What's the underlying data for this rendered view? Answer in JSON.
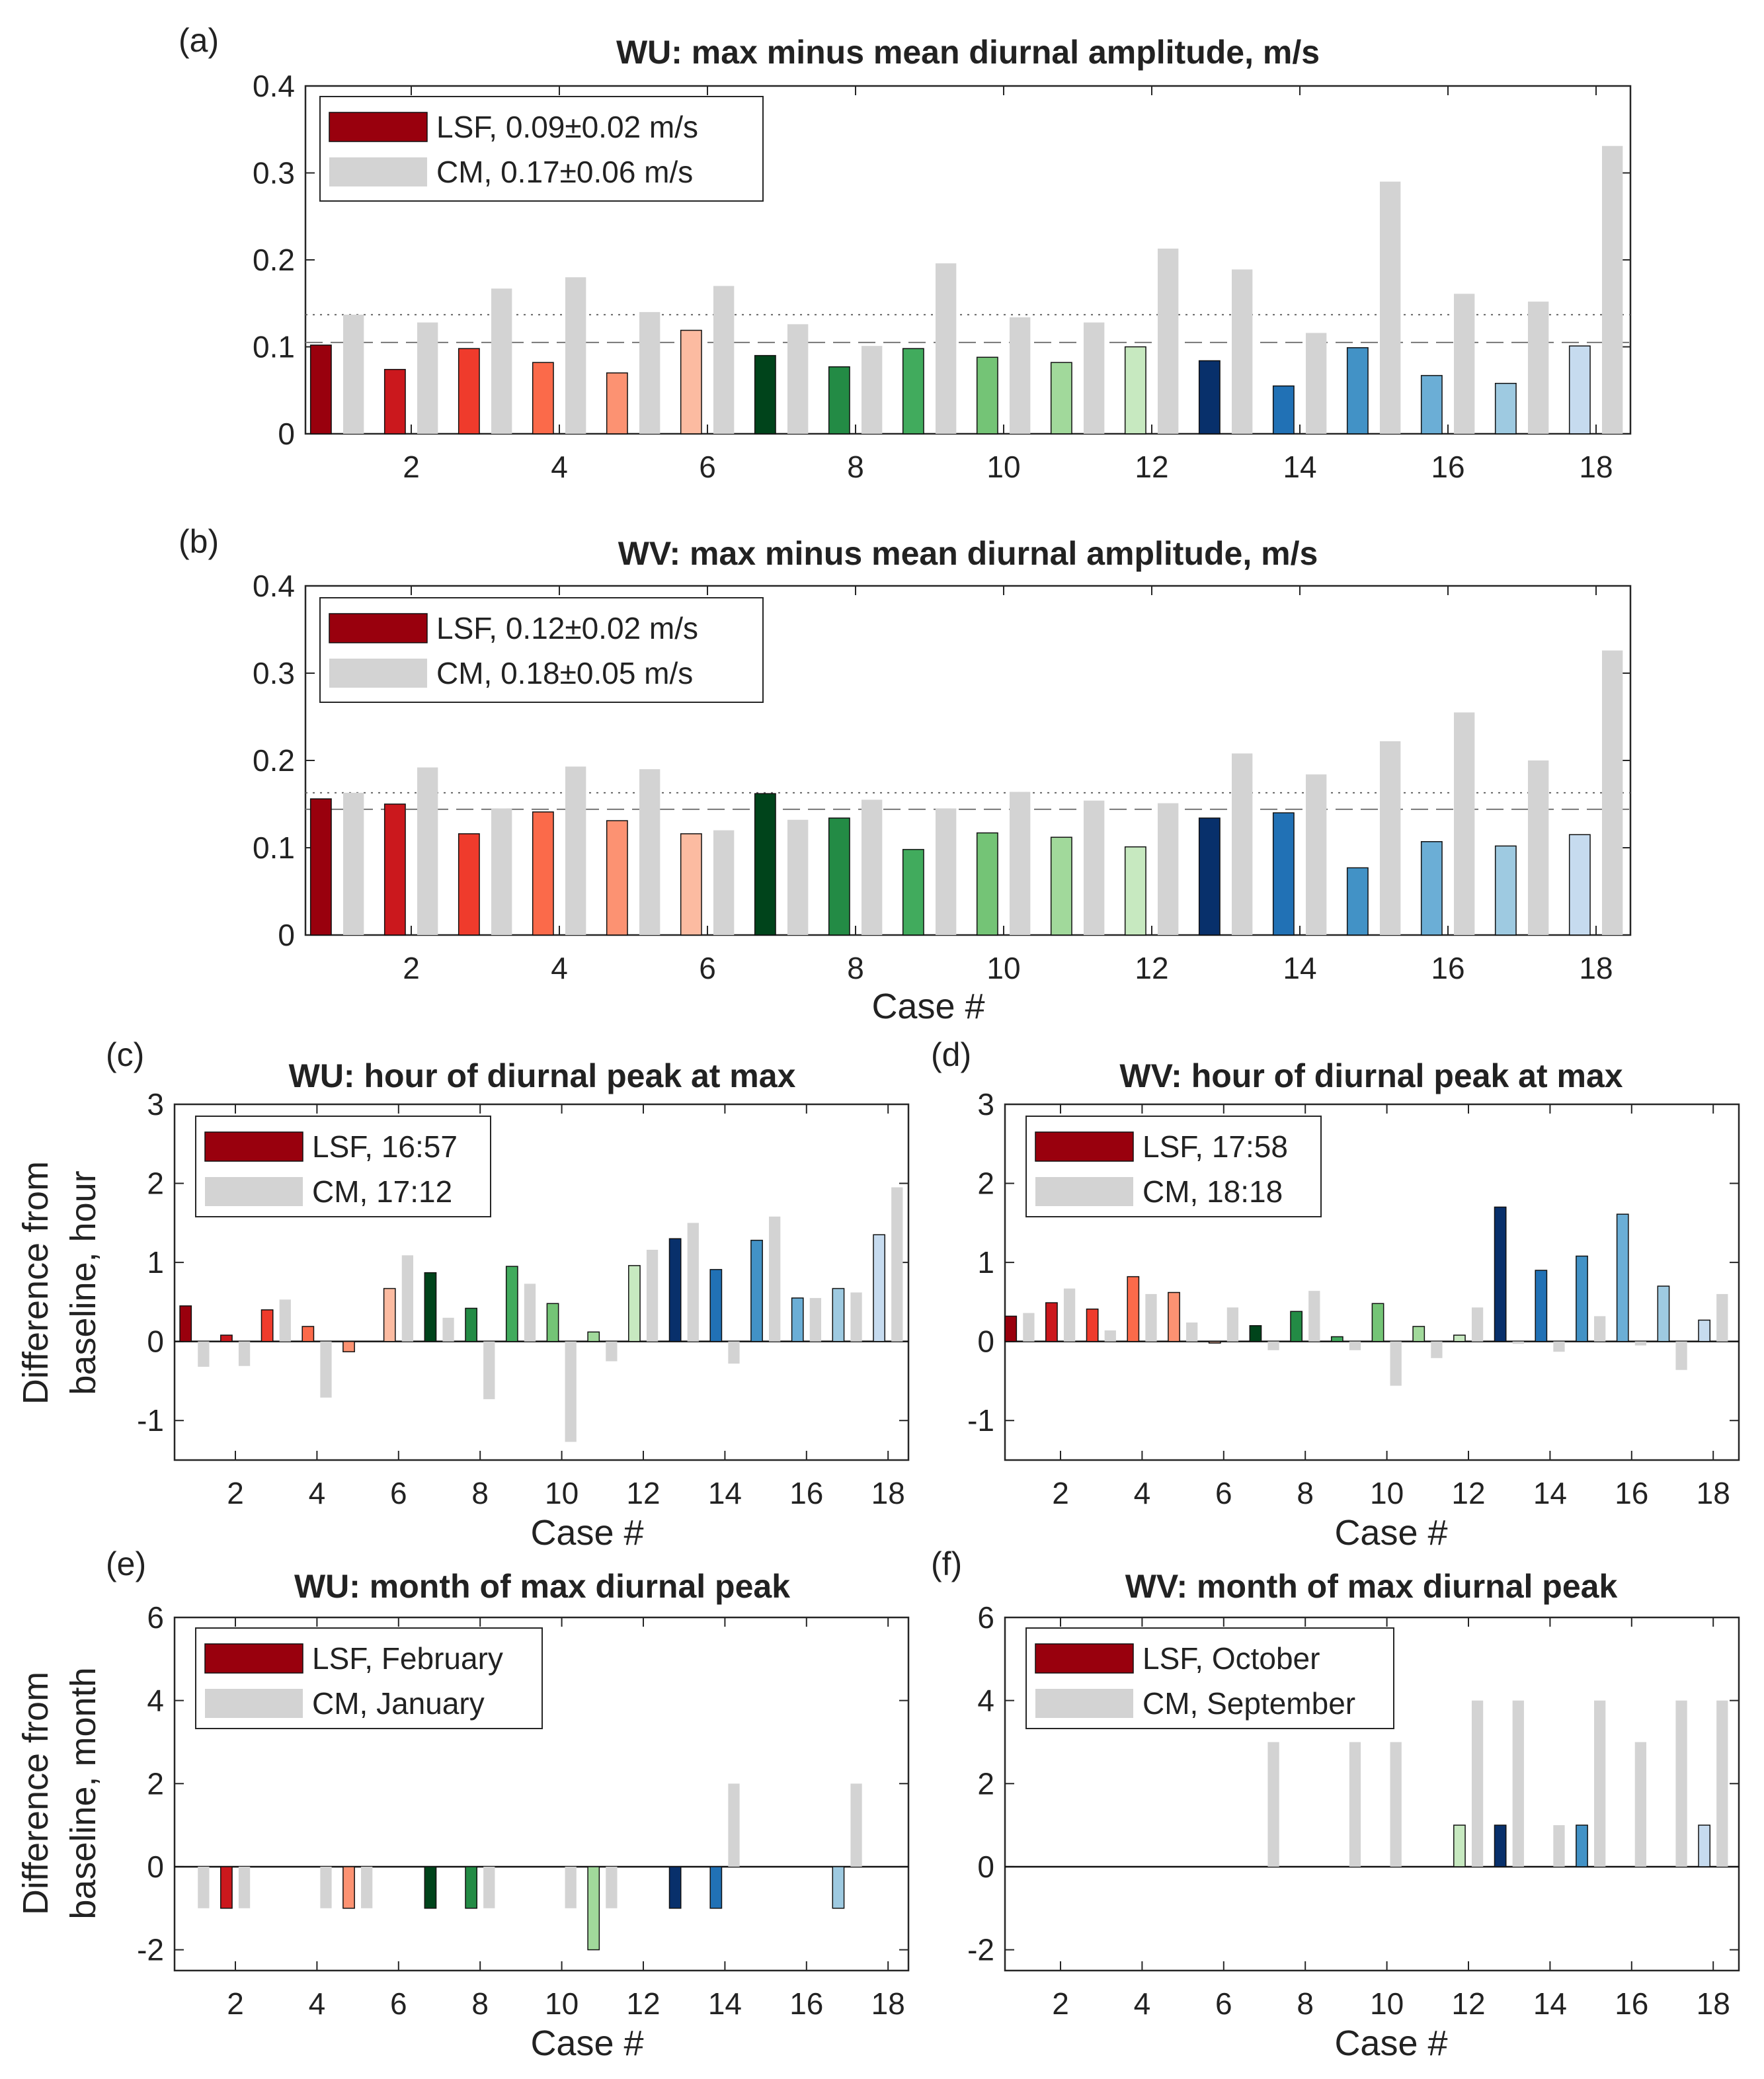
{
  "colors": {
    "red": [
      "#99000d",
      "#cb181d",
      "#ef3b2c",
      "#fb6a4a",
      "#fc9272",
      "#fcbba1"
    ],
    "green": [
      "#00441b",
      "#238b45",
      "#41ab5d",
      "#74c476",
      "#a1d99b",
      "#c7e9c0"
    ],
    "blue": [
      "#08306b",
      "#2171b5",
      "#4292c6",
      "#6baed6",
      "#9ecae1",
      "#c6dbef"
    ],
    "cm": "#d3d3d3",
    "legend_lsf": "#99000d",
    "legend_cm": "#d3d3d3",
    "baseline_lsf_line": "dashed",
    "baseline_cm_line": "dotted"
  },
  "chart_data": [
    {
      "id": "a",
      "panel_label": "(a)",
      "type": "bar",
      "title": "WU: max minus mean diurnal amplitude, m/s",
      "xlabel": "",
      "ylabel": "",
      "ylim": [
        0,
        0.4
      ],
      "yticks": [
        0,
        0.1,
        0.2,
        0.3,
        0.4
      ],
      "ytick_labels": [
        "0",
        "0.1",
        "0.2",
        "0.3",
        "0.4"
      ],
      "xticks": [
        2,
        4,
        6,
        8,
        10,
        12,
        14,
        16,
        18
      ],
      "x": [
        1,
        2,
        3,
        4,
        5,
        6,
        7,
        8,
        9,
        10,
        11,
        12,
        13,
        14,
        15,
        16,
        17,
        18
      ],
      "lsf_ref": 0.105,
      "cm_ref": 0.137,
      "legend": [
        "LSF, 0.09±0.02 m/s",
        "CM, 0.17±0.06 m/s"
      ],
      "series": [
        {
          "name": "LSF",
          "values": [
            0.102,
            0.074,
            0.098,
            0.082,
            0.07,
            0.119,
            0.09,
            0.077,
            0.098,
            0.088,
            0.082,
            0.1,
            0.084,
            0.055,
            0.099,
            0.067,
            0.058,
            0.101
          ]
        },
        {
          "name": "CM",
          "values": [
            0.137,
            0.128,
            0.167,
            0.18,
            0.14,
            0.17,
            0.126,
            0.101,
            0.196,
            0.134,
            0.128,
            0.213,
            0.189,
            0.116,
            0.29,
            0.161,
            0.152,
            0.331
          ]
        }
      ]
    },
    {
      "id": "b",
      "panel_label": "(b)",
      "type": "bar",
      "title": "WV: max minus mean diurnal amplitude, m/s",
      "xlabel": "Case #",
      "ylabel": "",
      "ylim": [
        0,
        0.4
      ],
      "yticks": [
        0,
        0.1,
        0.2,
        0.3,
        0.4
      ],
      "ytick_labels": [
        "0",
        "0.1",
        "0.2",
        "0.3",
        "0.4"
      ],
      "xticks": [
        2,
        4,
        6,
        8,
        10,
        12,
        14,
        16,
        18
      ],
      "x": [
        1,
        2,
        3,
        4,
        5,
        6,
        7,
        8,
        9,
        10,
        11,
        12,
        13,
        14,
        15,
        16,
        17,
        18
      ],
      "lsf_ref": 0.144,
      "cm_ref": 0.163,
      "legend": [
        "LSF, 0.12±0.02 m/s",
        "CM, 0.18±0.05 m/s"
      ],
      "series": [
        {
          "name": "LSF",
          "values": [
            0.156,
            0.15,
            0.116,
            0.141,
            0.131,
            0.116,
            0.162,
            0.134,
            0.098,
            0.117,
            0.112,
            0.101,
            0.134,
            0.14,
            0.077,
            0.107,
            0.102,
            0.115
          ]
        },
        {
          "name": "CM",
          "values": [
            0.163,
            0.192,
            0.145,
            0.193,
            0.19,
            0.12,
            0.132,
            0.155,
            0.145,
            0.164,
            0.154,
            0.151,
            0.208,
            0.184,
            0.222,
            0.255,
            0.2,
            0.326
          ]
        }
      ]
    },
    {
      "id": "c",
      "panel_label": "(c)",
      "type": "bar",
      "title": "WU: hour of diurnal peak at max",
      "xlabel": "Case #",
      "ylabel": [
        "Difference from",
        "baseline, hour"
      ],
      "ylim": [
        -1.5,
        3
      ],
      "yticks": [
        -1,
        0,
        1,
        2,
        3
      ],
      "ytick_labels": [
        "-1",
        "0",
        "1",
        "2",
        "3"
      ],
      "xticks": [
        2,
        4,
        6,
        8,
        10,
        12,
        14,
        16,
        18
      ],
      "x": [
        1,
        2,
        3,
        4,
        5,
        6,
        7,
        8,
        9,
        10,
        11,
        12,
        13,
        14,
        15,
        16,
        17,
        18
      ],
      "legend": [
        "LSF, 16:57",
        "CM, 17:12"
      ],
      "series": [
        {
          "name": "LSF",
          "values": [
            0.45,
            0.08,
            0.4,
            0.19,
            -0.13,
            0.67,
            0.87,
            0.42,
            0.95,
            0.48,
            0.12,
            0.96,
            1.3,
            0.91,
            1.28,
            0.55,
            0.67,
            1.35
          ]
        },
        {
          "name": "CM",
          "values": [
            -0.32,
            -0.31,
            0.53,
            -0.71,
            0,
            1.09,
            0.3,
            -0.73,
            0.73,
            -1.27,
            -0.25,
            1.16,
            1.5,
            -0.28,
            1.58,
            0.55,
            0.62,
            1.95
          ]
        }
      ]
    },
    {
      "id": "d",
      "panel_label": "(d)",
      "type": "bar",
      "title": "WV: hour of diurnal peak at max",
      "xlabel": "Case #",
      "ylabel": "",
      "ylim": [
        -1.5,
        3
      ],
      "yticks": [
        -1,
        0,
        1,
        2,
        3
      ],
      "ytick_labels": [
        "-1",
        "0",
        "1",
        "2",
        "3"
      ],
      "xticks": [
        2,
        4,
        6,
        8,
        10,
        12,
        14,
        16,
        18
      ],
      "x": [
        1,
        2,
        3,
        4,
        5,
        6,
        7,
        8,
        9,
        10,
        11,
        12,
        13,
        14,
        15,
        16,
        17,
        18
      ],
      "legend": [
        "LSF, 17:58",
        "CM, 18:18"
      ],
      "series": [
        {
          "name": "LSF",
          "values": [
            0.32,
            0.49,
            0.41,
            0.82,
            0.62,
            -0.02,
            0.2,
            0.38,
            0.06,
            0.48,
            0.19,
            0.08,
            1.7,
            0.9,
            1.08,
            1.61,
            0.7,
            0.27
          ]
        },
        {
          "name": "CM",
          "values": [
            0.36,
            0.67,
            0.14,
            0.6,
            0.24,
            0.43,
            -0.11,
            0.64,
            -0.11,
            -0.56,
            -0.21,
            0.43,
            -0.03,
            -0.13,
            0.32,
            -0.05,
            -0.36,
            0.6
          ]
        }
      ]
    },
    {
      "id": "e",
      "panel_label": "(e)",
      "type": "bar",
      "title": "WU: month of max diurnal peak",
      "xlabel": "Case #",
      "ylabel": [
        "Difference from",
        "baseline, month"
      ],
      "ylim": [
        -2.5,
        6
      ],
      "yticks": [
        -2,
        0,
        2,
        4,
        6
      ],
      "ytick_labels": [
        "-2",
        "0",
        "2",
        "4",
        "6"
      ],
      "xticks": [
        2,
        4,
        6,
        8,
        10,
        12,
        14,
        16,
        18
      ],
      "x": [
        1,
        2,
        3,
        4,
        5,
        6,
        7,
        8,
        9,
        10,
        11,
        12,
        13,
        14,
        15,
        16,
        17,
        18
      ],
      "legend": [
        "LSF, February",
        "CM, January"
      ],
      "series": [
        {
          "name": "LSF",
          "values": [
            0,
            -1,
            0,
            0,
            -1,
            0,
            -1,
            -1,
            0,
            0,
            -2,
            0,
            -1,
            -1,
            0,
            0,
            -1,
            0
          ]
        },
        {
          "name": "CM",
          "values": [
            -1,
            -1,
            0,
            -1,
            -1,
            0,
            0,
            -1,
            0,
            -1,
            -1,
            0,
            0,
            2,
            0,
            0,
            2,
            0
          ]
        }
      ]
    },
    {
      "id": "f",
      "panel_label": "(f)",
      "type": "bar",
      "title": "WV: month of max diurnal peak",
      "xlabel": "Case #",
      "ylabel": "",
      "ylim": [
        -2.5,
        6
      ],
      "yticks": [
        -2,
        0,
        2,
        4,
        6
      ],
      "ytick_labels": [
        "-2",
        "0",
        "2",
        "4",
        "6"
      ],
      "xticks": [
        2,
        4,
        6,
        8,
        10,
        12,
        14,
        16,
        18
      ],
      "x": [
        1,
        2,
        3,
        4,
        5,
        6,
        7,
        8,
        9,
        10,
        11,
        12,
        13,
        14,
        15,
        16,
        17,
        18
      ],
      "legend": [
        "LSF, October",
        "CM, September"
      ],
      "series": [
        {
          "name": "LSF",
          "values": [
            0,
            0,
            0,
            0,
            0,
            0,
            0,
            0,
            0,
            0,
            0,
            1,
            1,
            0,
            1,
            0,
            0,
            1
          ]
        },
        {
          "name": "CM",
          "values": [
            0,
            0,
            0,
            0,
            0,
            0,
            3,
            0,
            3,
            3,
            0,
            4,
            4,
            1,
            4,
            3,
            4,
            4
          ]
        }
      ]
    }
  ]
}
